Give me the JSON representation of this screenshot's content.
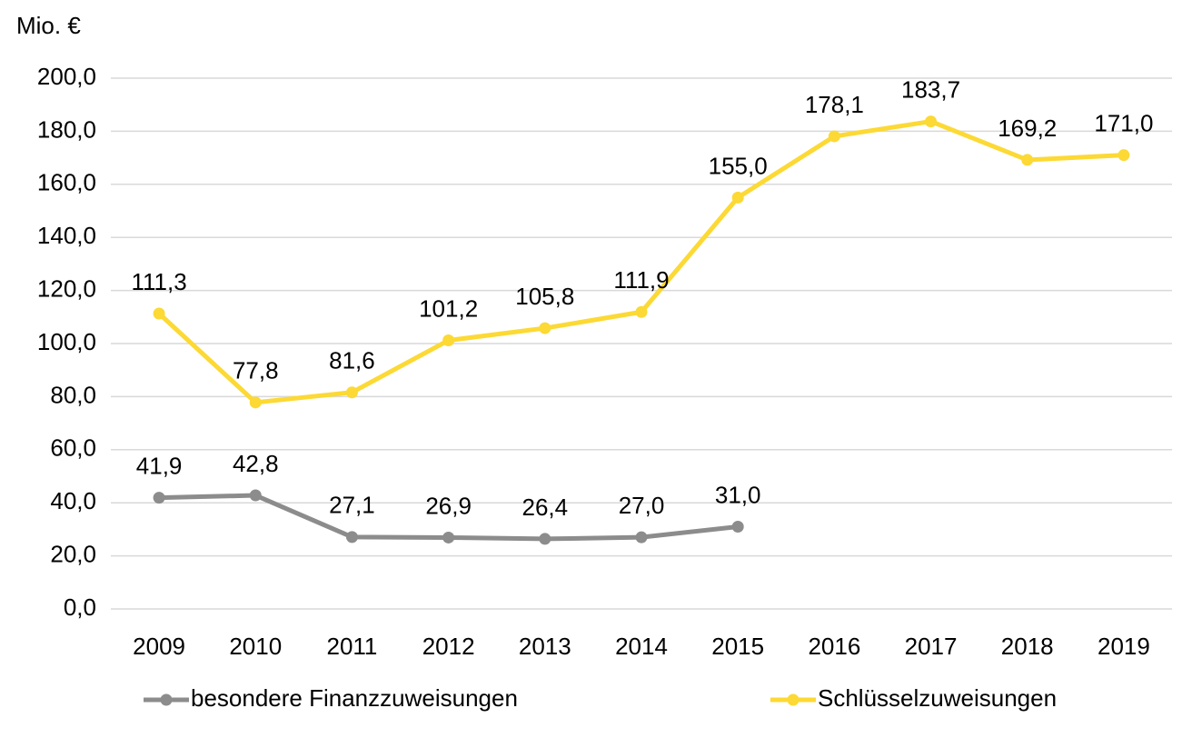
{
  "chart_data": {
    "type": "line",
    "y_axis_label": "Mio. €",
    "categories": [
      "2009",
      "2010",
      "2011",
      "2012",
      "2013",
      "2014",
      "2015",
      "2016",
      "2017",
      "2018",
      "2019"
    ],
    "series": [
      {
        "name": "besondere Finanzzuweisungen",
        "color": "#8c8c8c",
        "values": [
          41.9,
          42.8,
          27.1,
          26.9,
          26.4,
          27.0,
          31.0,
          null,
          null,
          null,
          null
        ],
        "value_labels": [
          "41,9",
          "42,8",
          "27,1",
          "26,9",
          "26,4",
          "27,0",
          "31,0",
          null,
          null,
          null,
          null
        ]
      },
      {
        "name": "Schlüsselzuweisungen",
        "color": "#fcd934",
        "values": [
          111.3,
          77.8,
          81.6,
          101.2,
          105.8,
          111.9,
          155.0,
          178.1,
          183.7,
          169.2,
          171.0
        ],
        "value_labels": [
          "111,3",
          "77,8",
          "81,6",
          "101,2",
          "105,8",
          "111,9",
          "155,0",
          "178,1",
          "183,7",
          "169,2",
          "171,0"
        ]
      }
    ],
    "ylim": [
      0,
      200
    ],
    "yticks": [
      {
        "value": 0,
        "label": "0,0"
      },
      {
        "value": 20,
        "label": "20,0"
      },
      {
        "value": 40,
        "label": "40,0"
      },
      {
        "value": 60,
        "label": "60,0"
      },
      {
        "value": 80,
        "label": "80,0"
      },
      {
        "value": 100,
        "label": "100,0"
      },
      {
        "value": 120,
        "label": "120,0"
      },
      {
        "value": 140,
        "label": "140,0"
      },
      {
        "value": 160,
        "label": "160,0"
      },
      {
        "value": 180,
        "label": "180,0"
      },
      {
        "value": 200,
        "label": "200,0"
      }
    ],
    "grid": true,
    "legend": "bottom"
  }
}
